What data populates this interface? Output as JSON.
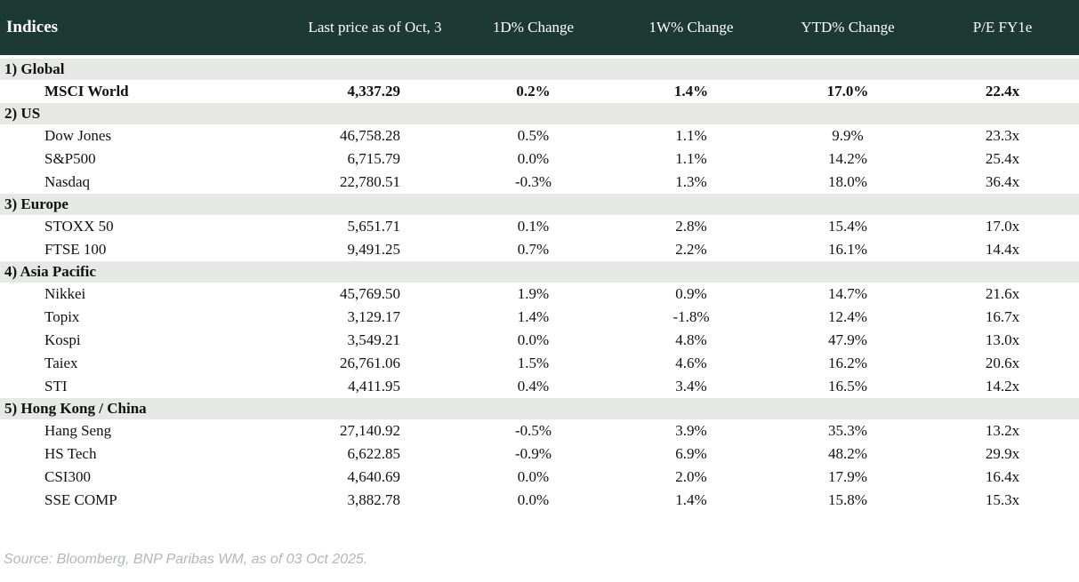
{
  "colors": {
    "header_bg": "#1d3933",
    "header_text": "#ffffff",
    "section_bg": "#e5e8e4",
    "positive": "#007d20",
    "negative": "#c2201e",
    "body_text": "#111111",
    "source_text": "#b2b6b9"
  },
  "footer": {
    "source": "Source: Bloomberg, BNP Paribas WM, as of 03 Oct 2025."
  },
  "chart_data": {
    "type": "table",
    "title": "Indices",
    "columns": [
      "Indices",
      "Last price as of Oct, 3",
      "1D% Change",
      "1W% Change",
      "YTD% Change",
      "P/E FY1e"
    ],
    "sections": [
      {
        "label": "1) Global",
        "rows": [
          {
            "name": "MSCI World",
            "last_price": "4,337.29",
            "d1_change": "0.2%",
            "w1_change": "1.4%",
            "ytd_change": "17.0%",
            "pe_fy1e": "22.4x",
            "emphasis": true
          }
        ]
      },
      {
        "label": "2) US",
        "rows": [
          {
            "name": "Dow Jones",
            "last_price": "46,758.28",
            "d1_change": "0.5%",
            "w1_change": "1.1%",
            "ytd_change": "9.9%",
            "pe_fy1e": "23.3x",
            "emphasis": false
          },
          {
            "name": "S&P500",
            "last_price": "6,715.79",
            "d1_change": "0.0%",
            "w1_change": "1.1%",
            "ytd_change": "14.2%",
            "pe_fy1e": "25.4x",
            "emphasis": false
          },
          {
            "name": "Nasdaq",
            "last_price": "22,780.51",
            "d1_change": "-0.3%",
            "w1_change": "1.3%",
            "ytd_change": "18.0%",
            "pe_fy1e": "36.4x",
            "emphasis": false
          }
        ]
      },
      {
        "label": "3) Europe",
        "rows": [
          {
            "name": "STOXX 50",
            "last_price": "5,651.71",
            "d1_change": "0.1%",
            "w1_change": "2.8%",
            "ytd_change": "15.4%",
            "pe_fy1e": "17.0x",
            "emphasis": false
          },
          {
            "name": "FTSE 100",
            "last_price": "9,491.25",
            "d1_change": "0.7%",
            "w1_change": "2.2%",
            "ytd_change": "16.1%",
            "pe_fy1e": "14.4x",
            "emphasis": false
          }
        ]
      },
      {
        "label": "4) Asia Pacific",
        "rows": [
          {
            "name": "Nikkei",
            "last_price": "45,769.50",
            "d1_change": "1.9%",
            "w1_change": "0.9%",
            "ytd_change": "14.7%",
            "pe_fy1e": "21.6x",
            "emphasis": false
          },
          {
            "name": "Topix",
            "last_price": "3,129.17",
            "d1_change": "1.4%",
            "w1_change": "-1.8%",
            "ytd_change": "12.4%",
            "pe_fy1e": "16.7x",
            "emphasis": false
          },
          {
            "name": "Kospi",
            "last_price": "3,549.21",
            "d1_change": "0.0%",
            "w1_change": "4.8%",
            "ytd_change": "47.9%",
            "pe_fy1e": "13.0x",
            "emphasis": false
          },
          {
            "name": "Taiex",
            "last_price": "26,761.06",
            "d1_change": "1.5%",
            "w1_change": "4.6%",
            "ytd_change": "16.2%",
            "pe_fy1e": "20.6x",
            "emphasis": false
          },
          {
            "name": "STI",
            "last_price": "4,411.95",
            "d1_change": "0.4%",
            "w1_change": "3.4%",
            "ytd_change": "16.5%",
            "pe_fy1e": "14.2x",
            "emphasis": false
          }
        ]
      },
      {
        "label": "5) Hong Kong / China",
        "rows": [
          {
            "name": "Hang Seng",
            "last_price": "27,140.92",
            "d1_change": "-0.5%",
            "w1_change": "3.9%",
            "ytd_change": "35.3%",
            "pe_fy1e": "13.2x",
            "emphasis": false
          },
          {
            "name": "HS Tech",
            "last_price": "6,622.85",
            "d1_change": "-0.9%",
            "w1_change": "6.9%",
            "ytd_change": "48.2%",
            "pe_fy1e": "29.9x",
            "emphasis": false
          },
          {
            "name": "CSI300",
            "last_price": "4,640.69",
            "d1_change": "0.0%",
            "w1_change": "2.0%",
            "ytd_change": "17.9%",
            "pe_fy1e": "16.4x",
            "emphasis": false
          },
          {
            "name": "SSE COMP",
            "last_price": "3,882.78",
            "d1_change": "0.0%",
            "w1_change": "1.4%",
            "ytd_change": "15.8%",
            "pe_fy1e": "15.3x",
            "emphasis": false
          }
        ]
      }
    ]
  }
}
